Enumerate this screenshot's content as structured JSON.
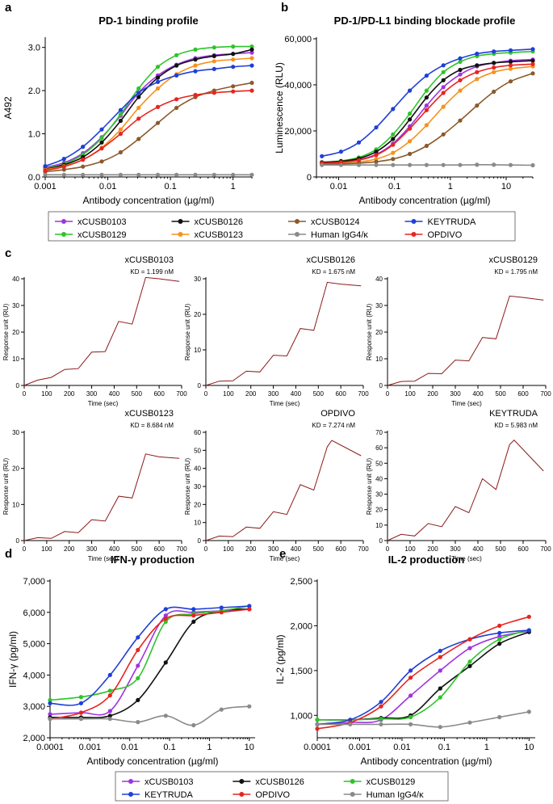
{
  "figure": {
    "panel_letters": [
      "a",
      "b",
      "c",
      "d",
      "e"
    ],
    "legend_top": [
      {
        "label": "xCUSB0103",
        "color": "#a033e0"
      },
      {
        "label": "xCUSB0126",
        "color": "#111111"
      },
      {
        "label": "xCUSB0124",
        "color": "#8b5a2b"
      },
      {
        "label": "KEYTRUDA",
        "color": "#1f3fd8"
      },
      {
        "label": "xCUSB0129",
        "color": "#2ec42a"
      },
      {
        "label": "xCUSB0123",
        "color": "#f5921e"
      },
      {
        "label": "Human IgG4/κ",
        "color": "#8a8a8a"
      },
      {
        "label": "OPDIVO",
        "color": "#e8241f"
      }
    ],
    "legend_bottom": [
      {
        "label": "xCUSB0103",
        "color": "#a033e0"
      },
      {
        "label": "xCUSB0126",
        "color": "#111111"
      },
      {
        "label": "xCUSB0129",
        "color": "#2ec42a"
      },
      {
        "label": "KEYTRUDA",
        "color": "#1f3fd8"
      },
      {
        "label": "OPDIVO",
        "color": "#e8241f"
      },
      {
        "label": "Human IgG4/κ",
        "color": "#8a8a8a"
      }
    ]
  },
  "chart_data": [
    {
      "id": "a",
      "type": "line",
      "title": "PD-1 binding profile",
      "xlabel": "Antibody concentration (µg/ml)",
      "ylabel": "A492",
      "xscale": "log",
      "xlim": [
        0.001,
        2
      ],
      "ylim": [
        0,
        3.2
      ],
      "xticks": [
        0.001,
        0.01,
        0.1,
        1
      ],
      "xtick_labels": [
        "0.001",
        "0.01",
        "0.1",
        "1"
      ],
      "yticks": [
        0,
        1,
        2,
        3
      ],
      "ytick_labels": [
        "0.0",
        "1.0",
        "2.0",
        "3.0"
      ],
      "x": [
        0.001,
        0.002,
        0.004,
        0.008,
        0.016,
        0.031,
        0.063,
        0.125,
        0.25,
        0.5,
        1,
        2
      ],
      "series": [
        {
          "name": "xCUSB0103",
          "color": "#a033e0",
          "values": [
            0.22,
            0.33,
            0.55,
            0.92,
            1.42,
            1.95,
            2.35,
            2.6,
            2.75,
            2.82,
            2.85,
            2.88
          ]
        },
        {
          "name": "xCUSB0129",
          "color": "#2ec42a",
          "values": [
            0.2,
            0.3,
            0.52,
            0.9,
            1.45,
            2.05,
            2.55,
            2.82,
            2.95,
            3.0,
            3.02,
            3.02
          ]
        },
        {
          "name": "xCUSB0126",
          "color": "#111111",
          "values": [
            0.18,
            0.28,
            0.46,
            0.8,
            1.3,
            1.85,
            2.3,
            2.58,
            2.72,
            2.8,
            2.85,
            2.95
          ]
        },
        {
          "name": "xCUSB0123",
          "color": "#f5921e",
          "values": [
            0.17,
            0.25,
            0.4,
            0.68,
            1.1,
            1.6,
            2.05,
            2.38,
            2.58,
            2.68,
            2.72,
            2.75
          ]
        },
        {
          "name": "xCUSB0124",
          "color": "#8b5a2b",
          "values": [
            0.12,
            0.17,
            0.24,
            0.36,
            0.57,
            0.88,
            1.25,
            1.6,
            1.85,
            2.0,
            2.1,
            2.18
          ]
        },
        {
          "name": "KEYTRUDA",
          "color": "#1f3fd8",
          "values": [
            0.25,
            0.42,
            0.7,
            1.1,
            1.55,
            1.95,
            2.2,
            2.35,
            2.45,
            2.5,
            2.55,
            2.58
          ]
        },
        {
          "name": "OPDIVO",
          "color": "#e8241f",
          "values": [
            0.15,
            0.24,
            0.4,
            0.66,
            1.0,
            1.35,
            1.62,
            1.8,
            1.9,
            1.95,
            1.98,
            2.0
          ]
        },
        {
          "name": "Human IgG4/κ",
          "color": "#8a8a8a",
          "values": [
            0.05,
            0.05,
            0.05,
            0.05,
            0.05,
            0.05,
            0.05,
            0.05,
            0.05,
            0.05,
            0.05,
            0.05
          ]
        }
      ]
    },
    {
      "id": "b",
      "type": "line",
      "title": "PD-1/PD-L1 binding blockade profile",
      "xlabel": "Antibody concentration (µg/ml)",
      "ylabel": "Luminescence (RLU)",
      "xscale": "log",
      "xlim": [
        0.004,
        30
      ],
      "ylim": [
        0,
        60000
      ],
      "xticks": [
        0.01,
        0.1,
        1,
        10
      ],
      "xtick_labels": [
        "0.01",
        "0.1",
        "1",
        "10"
      ],
      "yticks": [
        0,
        20000,
        40000,
        60000
      ],
      "ytick_labels": [
        "0",
        "20,000",
        "40,000",
        "60,000"
      ],
      "x": [
        0.005,
        0.011,
        0.023,
        0.047,
        0.094,
        0.188,
        0.375,
        0.75,
        1.5,
        3,
        6,
        12,
        30
      ],
      "series": [
        {
          "name": "xCUSB0103",
          "color": "#a033e0",
          "values": [
            6200,
            6600,
            7500,
            9800,
            14500,
            22000,
            31000,
            39000,
            44500,
            48000,
            49500,
            50500,
            51000
          ]
        },
        {
          "name": "xCUSB0129",
          "color": "#2ec42a",
          "values": [
            6400,
            7000,
            8500,
            12000,
            18500,
            27500,
            37500,
            45500,
            50000,
            52500,
            53500,
            54000,
            54500
          ]
        },
        {
          "name": "xCUSB0126",
          "color": "#111111",
          "values": [
            6300,
            6800,
            8000,
            11000,
            16500,
            25000,
            34500,
            42000,
            46500,
            48500,
            49500,
            50000,
            50500
          ]
        },
        {
          "name": "xCUSB0123",
          "color": "#f5921e",
          "values": [
            5800,
            6000,
            6500,
            7800,
            10500,
            15500,
            22500,
            30500,
            37500,
            42500,
            45500,
            47000,
            48000
          ]
        },
        {
          "name": "xCUSB0124",
          "color": "#8b5a2b",
          "values": [
            5600,
            5700,
            6000,
            6600,
            7800,
            10000,
            13500,
            18500,
            24500,
            31000,
            37000,
            41500,
            45000
          ]
        },
        {
          "name": "KEYTRUDA",
          "color": "#1f3fd8",
          "values": [
            9000,
            11000,
            15000,
            21500,
            29500,
            37500,
            44000,
            48500,
            51500,
            53500,
            54500,
            55000,
            55500
          ]
        },
        {
          "name": "OPDIVO",
          "color": "#e8241f",
          "values": [
            6000,
            6400,
            7300,
            9500,
            14000,
            21000,
            29000,
            36500,
            42000,
            45500,
            47500,
            48500,
            49000
          ]
        },
        {
          "name": "Human IgG4/κ",
          "color": "#8a8a8a",
          "values": [
            5200,
            5200,
            5200,
            5200,
            5200,
            5200,
            5200,
            5200,
            5200,
            5300,
            5300,
            5200,
            5100
          ]
        }
      ]
    },
    {
      "id": "c1",
      "type": "line",
      "title": "xCUSB0103",
      "kd_label": "KD = 1.199 nM",
      "xlabel": "Time (sec)",
      "ylabel": "Response unit (RU)",
      "xlim": [
        0,
        700
      ],
      "ylim": [
        0,
        40
      ],
      "xticks": [
        0,
        100,
        200,
        300,
        400,
        500,
        600,
        700
      ],
      "yticks": [
        0,
        10,
        20,
        30,
        40
      ],
      "x": [
        0,
        60,
        120,
        180,
        240,
        300,
        360,
        420,
        480,
        540,
        600,
        690
      ],
      "series": [
        {
          "name": "response",
          "color": "#8b1a1a",
          "values": [
            0,
            2,
            3,
            6,
            6.3,
            12.5,
            12.7,
            24,
            23,
            40.5,
            40,
            39
          ]
        }
      ]
    },
    {
      "id": "c2",
      "type": "line",
      "title": "xCUSB0126",
      "kd_label": "KD = 1.675 nM",
      "xlabel": "Time (sec)",
      "ylabel": "Response unit (RU)",
      "xlim": [
        0,
        700
      ],
      "ylim": [
        0,
        30
      ],
      "xticks": [
        0,
        100,
        200,
        300,
        400,
        500,
        600,
        700
      ],
      "yticks": [
        0,
        10,
        20,
        30
      ],
      "x": [
        0,
        60,
        120,
        180,
        240,
        300,
        360,
        420,
        480,
        540,
        600,
        690
      ],
      "series": [
        {
          "name": "response",
          "color": "#8b1a1a",
          "values": [
            0,
            1.2,
            1.3,
            4,
            3.8,
            8.5,
            8.3,
            16,
            15.5,
            29,
            28.5,
            28
          ]
        }
      ]
    },
    {
      "id": "c3",
      "type": "line",
      "title": "xCUSB0129",
      "kd_label": "KD = 1.795 nM",
      "xlabel": "Time (sec)",
      "ylabel": "Response unit (RU)",
      "xlim": [
        0,
        700
      ],
      "ylim": [
        0,
        40
      ],
      "xticks": [
        0,
        100,
        200,
        300,
        400,
        500,
        600,
        700
      ],
      "yticks": [
        0,
        10,
        20,
        30,
        40
      ],
      "x": [
        0,
        60,
        120,
        180,
        240,
        300,
        360,
        420,
        480,
        540,
        600,
        690
      ],
      "series": [
        {
          "name": "response",
          "color": "#8b1a1a",
          "values": [
            0,
            1.5,
            1.6,
            4.5,
            4.4,
            9.5,
            9.2,
            18,
            17.5,
            33.5,
            33,
            32
          ]
        }
      ]
    },
    {
      "id": "c4",
      "type": "line",
      "title": "xCUSB0123",
      "kd_label": "KD = 8.684 nM",
      "xlabel": "Time (sec)",
      "ylabel": "Response unit (RU)",
      "xlim": [
        0,
        700
      ],
      "ylim": [
        0,
        30
      ],
      "xticks": [
        0,
        100,
        200,
        300,
        400,
        500,
        600,
        700
      ],
      "yticks": [
        0,
        10,
        20,
        30
      ],
      "x": [
        0,
        60,
        120,
        180,
        240,
        300,
        360,
        420,
        480,
        540,
        600,
        690
      ],
      "series": [
        {
          "name": "response",
          "color": "#8b1a1a",
          "values": [
            0,
            0.8,
            0.6,
            2.5,
            2.2,
            5.8,
            5.4,
            12.3,
            11.8,
            24,
            23.2,
            22.8
          ]
        }
      ]
    },
    {
      "id": "c5",
      "type": "line",
      "title": "OPDIVO",
      "kd_label": "KD = 7.274 nM",
      "xlabel": "Time (sec)",
      "ylabel": "Response unit (RU)",
      "xlim": [
        0,
        700
      ],
      "ylim": [
        0,
        60
      ],
      "xticks": [
        0,
        100,
        200,
        300,
        400,
        500,
        600,
        700
      ],
      "yticks": [
        0,
        10,
        20,
        30,
        40,
        50,
        60
      ],
      "x": [
        0,
        60,
        120,
        180,
        240,
        300,
        360,
        420,
        480,
        540,
        560,
        690
      ],
      "series": [
        {
          "name": "response",
          "color": "#8b1a1a",
          "values": [
            0,
            2.5,
            2.2,
            7.5,
            6.8,
            16,
            14.5,
            31,
            28,
            52,
            55.5,
            47
          ]
        }
      ]
    },
    {
      "id": "c6",
      "type": "line",
      "title": "KEYTRUDA",
      "kd_label": "KD = 5.983 nM",
      "xlabel": "Time (sec)",
      "ylabel": "Response unit (RU)",
      "xlim": [
        0,
        700
      ],
      "ylim": [
        0,
        70
      ],
      "xticks": [
        0,
        100,
        200,
        300,
        400,
        500,
        600,
        700
      ],
      "yticks": [
        0,
        10,
        20,
        30,
        40,
        50,
        60,
        70
      ],
      "x": [
        0,
        60,
        120,
        180,
        240,
        300,
        360,
        420,
        480,
        540,
        560,
        690
      ],
      "series": [
        {
          "name": "response",
          "color": "#8b1a1a",
          "values": [
            0,
            4,
            3,
            11,
            9,
            22,
            18,
            40,
            33,
            62,
            65,
            45
          ]
        }
      ]
    },
    {
      "id": "d",
      "type": "line",
      "title": "IFN-γ production",
      "xlabel": "Antibody concentration (µg/ml)",
      "ylabel": "IFN-γ (pg/ml)",
      "xscale": "log",
      "xlim": [
        0.0001,
        14
      ],
      "ylim": [
        2000,
        7000
      ],
      "xticks": [
        0.0001,
        0.001,
        0.01,
        0.1,
        1,
        10
      ],
      "xtick_labels": [
        "0.0001",
        "0.001",
        "0.01",
        "0.1",
        "1",
        "10"
      ],
      "yticks": [
        2000,
        3000,
        4000,
        5000,
        6000,
        7000
      ],
      "ytick_labels": [
        "2,000",
        "3,000",
        "4,000",
        "5,000",
        "6,000",
        "7,000"
      ],
      "x": [
        0.0001,
        0.0006,
        0.0032,
        0.016,
        0.08,
        0.4,
        2,
        10
      ],
      "series": [
        {
          "name": "xCUSB0103",
          "color": "#a033e0",
          "values": [
            2750,
            2800,
            2850,
            4300,
            5900,
            6000,
            6050,
            6100
          ]
        },
        {
          "name": "xCUSB0126",
          "color": "#111111",
          "values": [
            2650,
            2650,
            2700,
            3200,
            4400,
            5700,
            6050,
            6100
          ]
        },
        {
          "name": "xCUSB0129",
          "color": "#2ec42a",
          "values": [
            3200,
            3300,
            3500,
            3900,
            5700,
            5950,
            6050,
            6200
          ]
        },
        {
          "name": "KEYTRUDA",
          "color": "#1f3fd8",
          "values": [
            3100,
            3100,
            4000,
            5200,
            6100,
            6100,
            6150,
            6200
          ]
        },
        {
          "name": "OPDIVO",
          "color": "#e8241f",
          "values": [
            2600,
            2800,
            3350,
            4800,
            5800,
            5900,
            6000,
            6100
          ]
        },
        {
          "name": "Human IgG4/κ",
          "color": "#8a8a8a",
          "values": [
            2600,
            2600,
            2600,
            2500,
            2700,
            2400,
            2900,
            3000
          ]
        }
      ]
    },
    {
      "id": "e",
      "type": "line",
      "title": "IL-2 production",
      "xlabel": "Antibody concentration (µg/ml)",
      "ylabel": "IL-2 (pg/ml)",
      "xscale": "log",
      "xlim": [
        0.0001,
        14
      ],
      "ylim": [
        750,
        2500
      ],
      "xticks": [
        0.0001,
        0.001,
        0.01,
        0.1,
        1,
        10
      ],
      "xtick_labels": [
        "0.0001",
        "0.001",
        "0.01",
        "0.1",
        "1",
        "10"
      ],
      "yticks": [
        1000,
        1500,
        2000,
        2500
      ],
      "ytick_labels": [
        "1,000",
        "1,500",
        "2,000",
        "2,500"
      ],
      "x": [
        0.0001,
        0.0006,
        0.0032,
        0.016,
        0.08,
        0.4,
        2,
        10
      ],
      "series": [
        {
          "name": "xCUSB0103",
          "color": "#a033e0",
          "values": [
            900,
            920,
            950,
            1220,
            1500,
            1750,
            1880,
            1940
          ]
        },
        {
          "name": "xCUSB0126",
          "color": "#111111",
          "values": [
            950,
            950,
            970,
            1000,
            1300,
            1550,
            1800,
            1930
          ]
        },
        {
          "name": "xCUSB0129",
          "color": "#2ec42a",
          "values": [
            950,
            950,
            960,
            980,
            1200,
            1600,
            1850,
            1950
          ]
        },
        {
          "name": "KEYTRUDA",
          "color": "#1f3fd8",
          "values": [
            900,
            950,
            1150,
            1500,
            1720,
            1850,
            1920,
            1950
          ]
        },
        {
          "name": "OPDIVO",
          "color": "#e8241f",
          "values": [
            850,
            920,
            1100,
            1420,
            1650,
            1850,
            2000,
            2100
          ]
        },
        {
          "name": "Human IgG4/κ",
          "color": "#8a8a8a",
          "values": [
            900,
            900,
            900,
            900,
            870,
            920,
            980,
            1040
          ]
        }
      ]
    }
  ]
}
